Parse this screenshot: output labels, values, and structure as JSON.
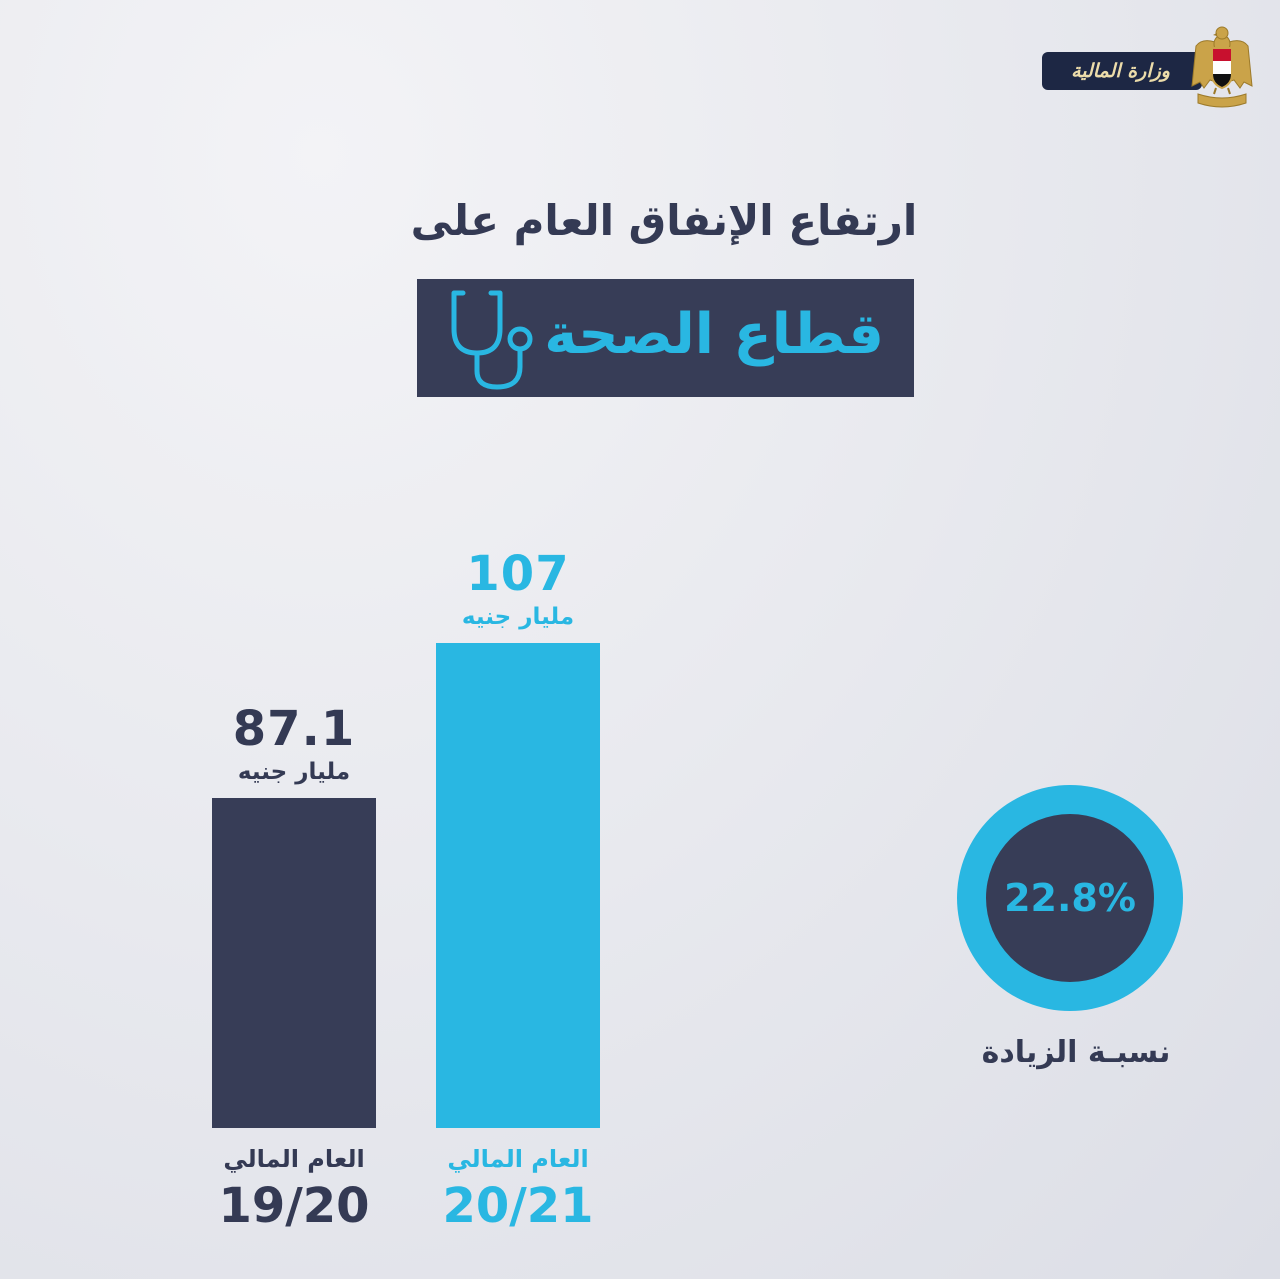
{
  "logo": {
    "ministry_name": "وزارة المالية",
    "emblem_icon": "egypt-eagle-icon"
  },
  "colors": {
    "navy": "#373d57",
    "cyan": "#29b7e2",
    "text_dark": "#343a54",
    "logo_bg": "#1d2744",
    "logo_gold": "#ecdcaa"
  },
  "chart_data": {
    "type": "bar",
    "title": "ارتفاع الإنفاق العام على",
    "subtitle": "قطاع الصحة",
    "subtitle_icon": "stethoscope-icon",
    "category_prefix": "العام المالي",
    "categories": [
      "19/20",
      "20/21"
    ],
    "values": [
      87.1,
      107
    ],
    "unit": "مليار جنيه",
    "bar_colors": [
      "#373d57",
      "#29b7e2"
    ],
    "change": {
      "value": "22.8%",
      "label": "نسبـة الزيادة"
    }
  }
}
